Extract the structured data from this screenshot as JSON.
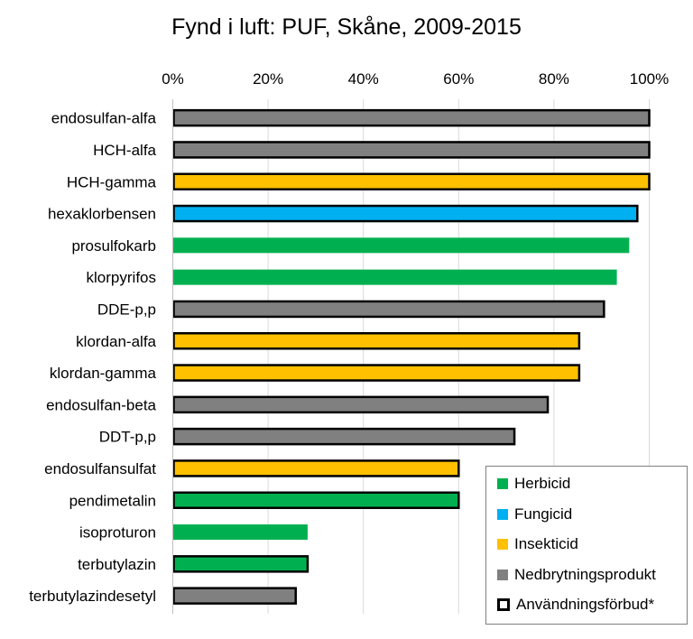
{
  "chart_data": {
    "type": "bar",
    "orientation": "horizontal",
    "title": "Fynd i luft: PUF, Skåne, 2009-2015",
    "xlim": [
      0,
      1
    ],
    "x_ticks": [
      "0%",
      "20%",
      "40%",
      "60%",
      "80%",
      "100%"
    ],
    "x_axis_position": "top",
    "grid": true,
    "legend_position": "bottom-right",
    "categories": [
      "endosulfan-alfa",
      "HCH-alfa",
      "HCH-gamma",
      "hexaklorbensen",
      "prosulfokarb",
      "klorpyrifos",
      "DDE-p,p",
      "klordan-alfa",
      "klordan-gamma",
      "endosulfan-beta",
      "DDT-p,p",
      "endosulfansulfat",
      "pendimetalin",
      "isoproturon",
      "terbutylazin",
      "terbutylazindesetyl"
    ],
    "values": [
      1.0,
      1.0,
      1.0,
      0.975,
      0.958,
      0.932,
      0.905,
      0.853,
      0.853,
      0.787,
      0.717,
      0.6,
      0.6,
      0.283,
      0.283,
      0.258
    ],
    "groups": [
      "Nedbrytningsprodukt",
      "Nedbrytningsprodukt",
      "Insekticid",
      "Fungicid",
      "Herbicid",
      "Herbicid",
      "Nedbrytningsprodukt",
      "Insekticid",
      "Insekticid",
      "Nedbrytningsprodukt",
      "Nedbrytningsprodukt",
      "Insekticid",
      "Herbicid",
      "Herbicid",
      "Herbicid",
      "Nedbrytningsprodukt"
    ],
    "banned": [
      true,
      true,
      true,
      true,
      false,
      false,
      true,
      true,
      true,
      true,
      true,
      true,
      true,
      false,
      true,
      true
    ],
    "legend": [
      {
        "label": "Herbicid",
        "color": "#00b050"
      },
      {
        "label": "Fungicid",
        "color": "#00b0f0"
      },
      {
        "label": "Insekticid",
        "color": "#ffc000"
      },
      {
        "label": "Nedbrytningsprodukt",
        "color": "#808080"
      },
      {
        "label": "Användningsförbud*",
        "color": "#000000",
        "outline": true
      }
    ]
  }
}
